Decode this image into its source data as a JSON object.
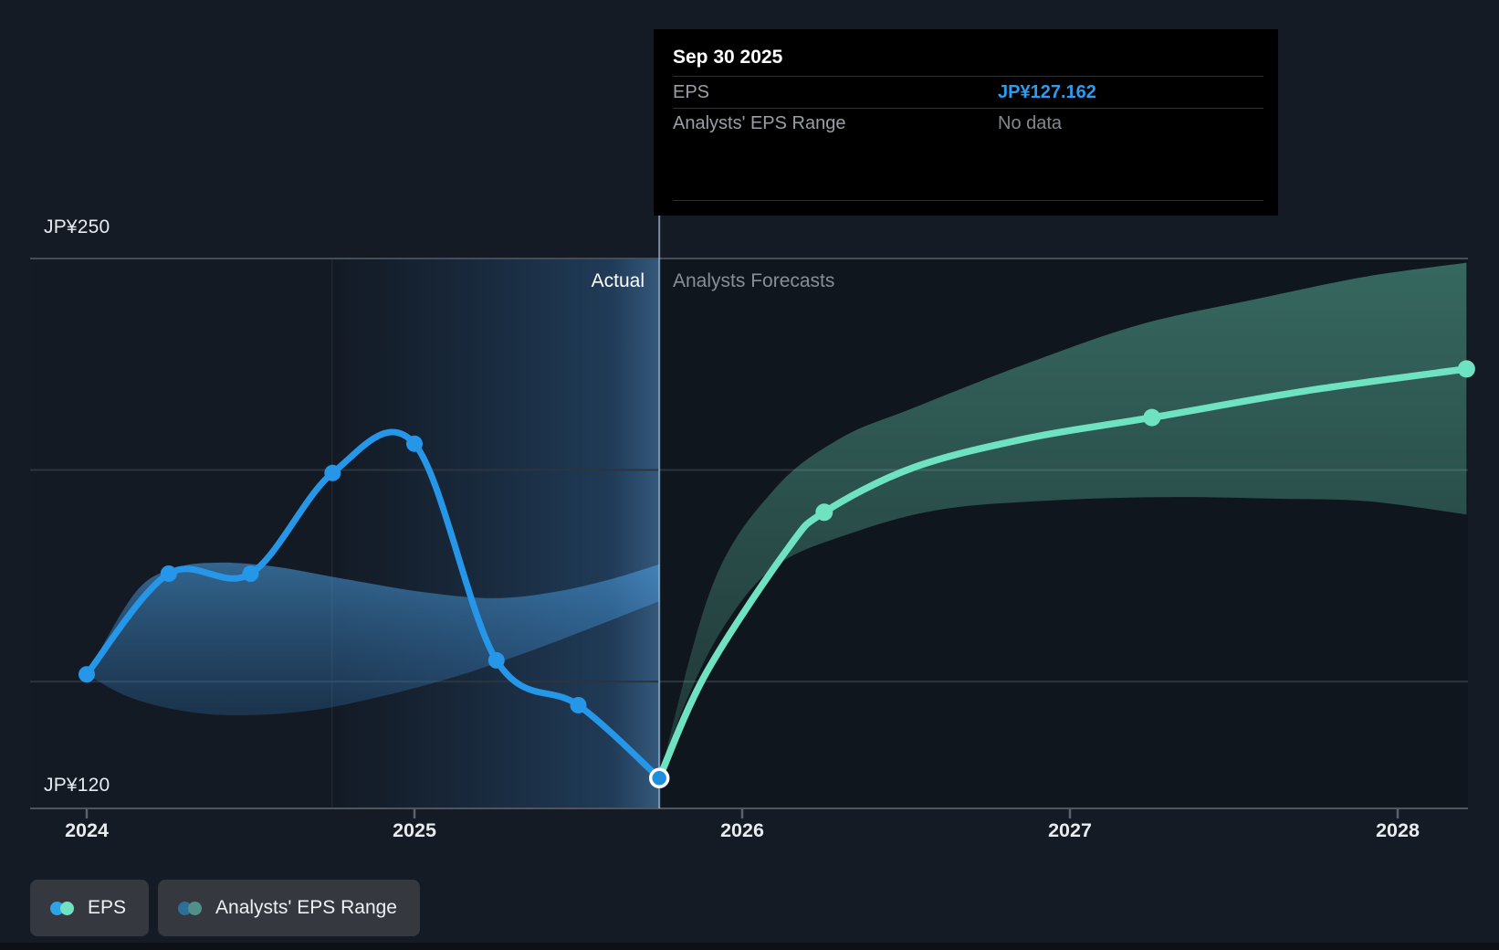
{
  "page": {
    "background": "#141b24"
  },
  "tooltip": {
    "title": "Sep 30 2025",
    "rows": [
      {
        "label": "EPS",
        "value": "JP¥127.162",
        "value_type": "eps"
      },
      {
        "label": "Analysts' EPS Range",
        "value": "No data",
        "value_type": "nodata"
      }
    ]
  },
  "annotations": {
    "actual_label": "Actual",
    "forecast_label": "Analysts Forecasts"
  },
  "y_axis": {
    "top_label": "JP¥250",
    "bottom_label": "JP¥120",
    "max": 250,
    "min": 120,
    "gridline_values": [
      250,
      200,
      150
    ]
  },
  "x_axis": {
    "ticks": [
      {
        "year": 2024,
        "label": "2024"
      },
      {
        "year": 2025,
        "label": "2025"
      },
      {
        "year": 2026,
        "label": "2026"
      },
      {
        "year": 2027,
        "label": "2027"
      },
      {
        "year": 2028,
        "label": "2028"
      }
    ]
  },
  "legend": {
    "items": [
      {
        "label": "EPS",
        "dot_colors": [
          "#2ea3e8",
          "#6fe3c1"
        ]
      },
      {
        "label": "Analysts' EPS Range",
        "dot_colors": [
          "#2e6f99",
          "#4f9188"
        ]
      }
    ]
  },
  "colors": {
    "eps_actual": "#2697e8",
    "eps_forecast": "#6fe3c1",
    "eps_value_text": "#2b9cf0",
    "divider": "rgba(172,206,235,0.65)",
    "forecast_bg": "#10161d",
    "actual_bg": "#131a24",
    "highlight_blue": "rgba(62,132,200,0.38)"
  },
  "chart_data": {
    "type": "line",
    "title": "EPS actuals and analysts forecasts",
    "x_domain": [
      2023.83,
      2028.22
    ],
    "y_domain": [
      120,
      250
    ],
    "divider_x": 2025.747,
    "highlight_start_x": 2024.747,
    "grid": true,
    "legend_position": "bottom-left",
    "series": [
      {
        "name": "EPS (actual)",
        "color": "#2697e8",
        "width": 7,
        "points": [
          {
            "x": 2024.0,
            "y": 151.7,
            "dot": true
          },
          {
            "x": 2024.25,
            "y": 175.5,
            "dot": true
          },
          {
            "x": 2024.5,
            "y": 175.5,
            "dot": true
          },
          {
            "x": 2024.75,
            "y": 199.3,
            "dot": true
          },
          {
            "x": 2025.0,
            "y": 206.2,
            "dot": true
          },
          {
            "x": 2025.25,
            "y": 155.0,
            "dot": true
          },
          {
            "x": 2025.5,
            "y": 144.4,
            "dot": true
          },
          {
            "x": 2025.747,
            "y": 127.162,
            "dot": true,
            "highlight": true
          }
        ]
      },
      {
        "name": "EPS (analysts forecast)",
        "color": "#6fe3c1",
        "width": 7.5,
        "points": [
          {
            "x": 2025.747,
            "y": 127.162
          },
          {
            "x": 2025.89,
            "y": 152.0
          },
          {
            "x": 2026.14,
            "y": 181.5
          },
          {
            "x": 2026.25,
            "y": 190.0,
            "dot": true
          },
          {
            "x": 2026.52,
            "y": 200.5
          },
          {
            "x": 2026.87,
            "y": 207.5
          },
          {
            "x": 2027.25,
            "y": 212.4,
            "dot": true
          },
          {
            "x": 2027.72,
            "y": 218.7
          },
          {
            "x": 2028.21,
            "y": 223.9,
            "dot": true
          }
        ]
      }
    ],
    "bands": [
      {
        "name": "Actual EPS range",
        "fill_top": "rgba(80,170,240,0.52)",
        "fill_bottom": "rgba(48,110,170,0.30)",
        "top": [
          [
            2024.0,
            151.7
          ],
          [
            2024.15,
            171.2
          ],
          [
            2024.27,
            176.8
          ],
          [
            2024.4,
            178.1
          ],
          [
            2024.57,
            177.2
          ],
          [
            2024.79,
            174.2
          ],
          [
            2025.02,
            171.2
          ],
          [
            2025.24,
            169.7
          ],
          [
            2025.43,
            171.2
          ],
          [
            2025.6,
            174.2
          ],
          [
            2025.747,
            177.7
          ]
        ],
        "bottom": [
          [
            2024.0,
            151.7
          ],
          [
            2024.13,
            146.3
          ],
          [
            2024.29,
            143.1
          ],
          [
            2024.46,
            142.0
          ],
          [
            2024.68,
            143.1
          ],
          [
            2024.9,
            146.5
          ],
          [
            2025.13,
            151.3
          ],
          [
            2025.35,
            157.1
          ],
          [
            2025.55,
            163.0
          ],
          [
            2025.747,
            169.0
          ]
        ]
      },
      {
        "name": "Analysts' EPS range (forecast)",
        "fill_top": "rgba(111,227,193,0.40)",
        "fill_bottom": "rgba(111,227,193,0.15)",
        "top": [
          [
            2025.747,
            127.162
          ],
          [
            2025.91,
            172.9
          ],
          [
            2026.1,
            195.6
          ],
          [
            2026.3,
            207.5
          ],
          [
            2026.52,
            214.6
          ],
          [
            2026.87,
            225.2
          ],
          [
            2027.22,
            234.5
          ],
          [
            2027.58,
            240.6
          ],
          [
            2027.91,
            245.8
          ],
          [
            2028.21,
            249.0
          ]
        ],
        "bottom": [
          [
            2025.747,
            127.162
          ],
          [
            2025.82,
            143.7
          ],
          [
            2025.94,
            162.5
          ],
          [
            2026.1,
            177.2
          ],
          [
            2026.33,
            185.0
          ],
          [
            2026.6,
            190.6
          ],
          [
            2026.94,
            192.8
          ],
          [
            2027.3,
            193.6
          ],
          [
            2027.64,
            193.2
          ],
          [
            2027.91,
            192.6
          ],
          [
            2028.21,
            189.5
          ]
        ]
      }
    ]
  }
}
